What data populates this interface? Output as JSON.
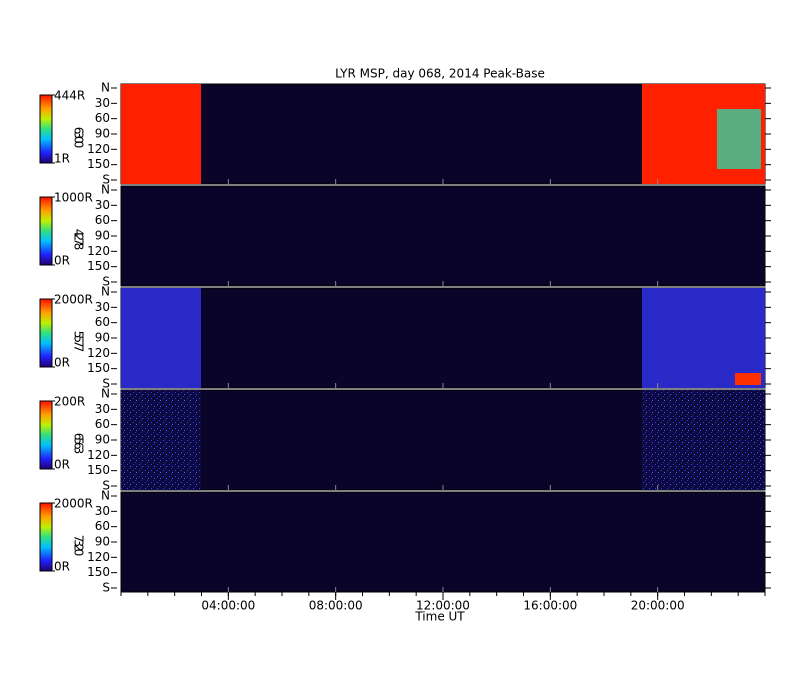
{
  "chart_data": {
    "type": "heatmap",
    "title": "LYR MSP, day 068, 2014 Peak-Base",
    "xlabel": "Time UT",
    "xlim": [
      0,
      24
    ],
    "xticks": [
      {
        "value": 4,
        "label": "04:00:00"
      },
      {
        "value": 8,
        "label": "08:00:00"
      },
      {
        "value": 12,
        "label": "12:00:00"
      },
      {
        "value": 16,
        "label": "16:00:00"
      },
      {
        "value": 20,
        "label": "20:00:00"
      }
    ],
    "ylim": [
      0,
      180
    ],
    "yticks": [
      {
        "value": 0,
        "label": "N"
      },
      30,
      60,
      90,
      120,
      150,
      {
        "value": 180,
        "label": "S"
      }
    ],
    "panels": [
      {
        "wavelength": "6300",
        "clim": [
          {
            "value": 1,
            "label": "1R"
          },
          {
            "value": 444,
            "label": "444R"
          }
        ]
      },
      {
        "wavelength": "4278",
        "clim": [
          {
            "value": 0,
            "label": "0R"
          },
          {
            "value": 1000,
            "label": "1000R"
          }
        ]
      },
      {
        "wavelength": "5577",
        "clim": [
          {
            "value": 0,
            "label": "0R"
          },
          {
            "value": 2000,
            "label": "2000R"
          }
        ]
      },
      {
        "wavelength": "6563",
        "clim": [
          {
            "value": 0,
            "label": "0R"
          },
          {
            "value": 200,
            "label": "200R"
          }
        ]
      },
      {
        "wavelength": "7320",
        "clim": [
          {
            "value": 0,
            "label": "0R"
          },
          {
            "value": 2000,
            "label": "2000R"
          }
        ]
      }
    ]
  }
}
